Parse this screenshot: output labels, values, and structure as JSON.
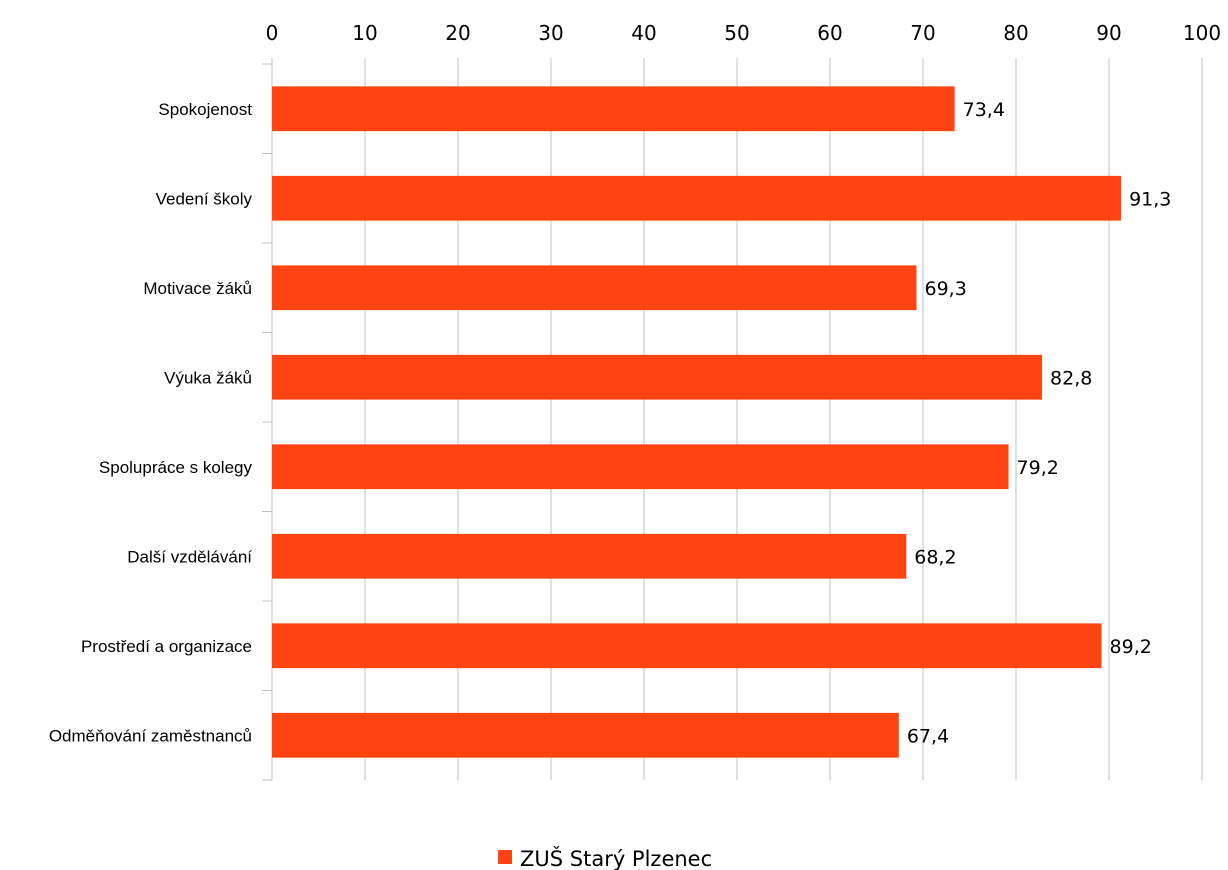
{
  "chart_data": {
    "type": "bar",
    "orientation": "horizontal",
    "categories": [
      "Spokojenost",
      "Vedení školy",
      "Motivace žáků",
      "Výuka žáků",
      "Spolupráce s kolegy",
      "Další vzdělávání",
      "Prostředí a organizace",
      "Odměňování zaměstnanců"
    ],
    "series": [
      {
        "name": "ZUŠ Starý Plzenec",
        "values": [
          73.4,
          91.3,
          69.3,
          82.8,
          79.2,
          68.2,
          89.2,
          67.4
        ],
        "labels": [
          "73,4",
          "91,3",
          "69,3",
          "82,8",
          "79,2",
          "68,2",
          "89,2",
          "67,4"
        ],
        "color": "#ff4412"
      }
    ],
    "xlim": [
      0,
      100
    ],
    "xticks": [
      "0",
      "10",
      "20",
      "30",
      "40",
      "50",
      "60",
      "70",
      "80",
      "90",
      "100"
    ],
    "x_axis_position": "top",
    "grid": true,
    "legend_position": "bottom",
    "gridline_color": "#c0c0c0"
  }
}
